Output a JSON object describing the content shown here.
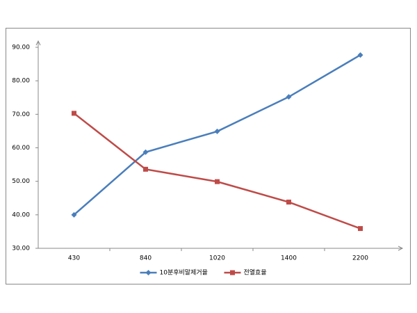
{
  "chart_data": {
    "type": "line",
    "categories": [
      "430",
      "840",
      "1020",
      "1400",
      "2200"
    ],
    "series": [
      {
        "name": "10분후비말제거율",
        "color": "#4a7ebb",
        "marker": "diamond",
        "values": [
          40.0,
          58.7,
          64.9,
          75.2,
          87.7
        ]
      },
      {
        "name": "전열효율",
        "color": "#be4b48",
        "marker": "square",
        "values": [
          70.3,
          53.6,
          49.9,
          43.8,
          35.9
        ]
      }
    ],
    "ylim": [
      30,
      90
    ],
    "yticks": [
      {
        "value": 30,
        "label": "30.00"
      },
      {
        "value": 40,
        "label": "40.00"
      },
      {
        "value": 50,
        "label": "50.00"
      },
      {
        "value": 60,
        "label": "60.00"
      },
      {
        "value": 70,
        "label": "70.00"
      },
      {
        "value": 80,
        "label": "80.00"
      },
      {
        "value": 90,
        "label": "90.00"
      }
    ],
    "grid": false,
    "legend": "bottom"
  }
}
